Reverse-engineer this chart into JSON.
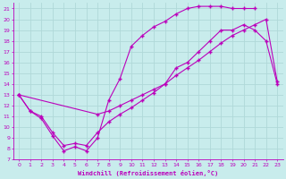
{
  "xlabel": "Windchill (Refroidissement éolien,°C)",
  "bg_color": "#c8ecec",
  "grid_color": "#b0d8d8",
  "line_color": "#bb00bb",
  "xlim_min": -0.5,
  "xlim_max": 23.5,
  "ylim_min": 7,
  "ylim_max": 21.5,
  "xticks": [
    0,
    1,
    2,
    3,
    4,
    5,
    6,
    7,
    8,
    9,
    10,
    11,
    12,
    13,
    14,
    15,
    16,
    17,
    18,
    19,
    20,
    21,
    22,
    23
  ],
  "yticks": [
    7,
    8,
    9,
    10,
    11,
    12,
    13,
    14,
    15,
    16,
    17,
    18,
    19,
    20,
    21
  ],
  "curve1_x": [
    0,
    1,
    2,
    3,
    4,
    5,
    6,
    7,
    8,
    9,
    10,
    11,
    12,
    13,
    14,
    15,
    16,
    17,
    18,
    19,
    20,
    21,
    22,
    23
  ],
  "curve1_y": [
    13,
    11.5,
    11.0,
    9.5,
    8.3,
    8.5,
    8.3,
    9.5,
    10.5,
    11.2,
    11.8,
    12.5,
    13.2,
    14.0,
    15.5,
    16.0,
    17.0,
    18.0,
    19.0,
    19.0,
    19.5,
    19.0,
    18.0,
    14.0
  ],
  "curve2_x": [
    0,
    1,
    2,
    3,
    4,
    5,
    6,
    7,
    8,
    9,
    10,
    11,
    12,
    13,
    14,
    15,
    16,
    17,
    18,
    19,
    20,
    21
  ],
  "curve2_y": [
    13,
    11.5,
    10.8,
    9.2,
    7.8,
    8.2,
    7.8,
    9.0,
    12.5,
    14.5,
    17.5,
    18.5,
    19.3,
    19.8,
    20.5,
    21.0,
    21.2,
    21.2,
    21.2,
    21.0,
    21.0,
    21.0
  ],
  "curve3_x": [
    0,
    7,
    8,
    9,
    10,
    11,
    12,
    13,
    14,
    15,
    16,
    17,
    18,
    19,
    20,
    21,
    22,
    23
  ],
  "curve3_y": [
    13,
    11.2,
    11.5,
    12.0,
    12.5,
    13.0,
    13.5,
    14.0,
    14.8,
    15.5,
    16.2,
    17.0,
    17.8,
    18.5,
    19.0,
    19.5,
    20.0,
    14.2
  ]
}
